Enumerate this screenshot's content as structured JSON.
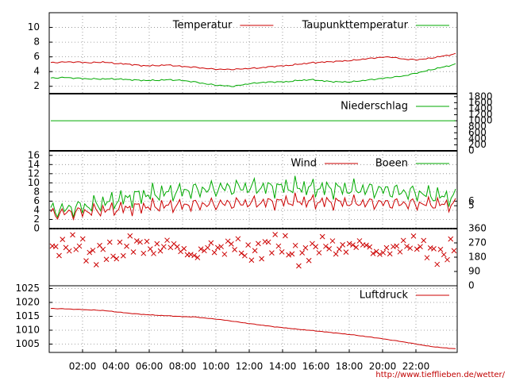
{
  "source_url": "http://www.tiefflieben.de/wetter/",
  "colors": {
    "red": "#cc0000",
    "green": "#00aa00",
    "grid": "#888888"
  },
  "chart_data": [
    {
      "type": "line",
      "grid": true,
      "legend_position": "top-right",
      "ylim": [
        1,
        12
      ],
      "yticks": [
        "2",
        "4",
        "6",
        "8",
        "10"
      ],
      "series": [
        {
          "name": "Temperatur",
          "color": "red",
          "values": [
            5.2,
            5.3,
            5.3,
            5.2,
            5.3,
            5.1,
            5.0,
            4.8,
            4.8,
            4.9,
            4.7,
            4.6,
            4.4,
            4.3,
            4.3,
            4.4,
            4.5,
            4.7,
            4.8,
            5.0,
            5.2,
            5.3,
            5.4,
            5.5,
            5.7,
            5.9,
            6.0,
            5.7,
            5.6,
            5.8,
            6.1,
            6.4
          ]
        },
        {
          "name": "Taupunkttemperatur",
          "color": "green",
          "values": [
            3.1,
            3.2,
            3.1,
            3.0,
            3.0,
            3.0,
            2.9,
            2.8,
            2.8,
            2.9,
            2.8,
            2.6,
            2.3,
            2.1,
            2.0,
            2.3,
            2.5,
            2.6,
            2.6,
            2.8,
            2.9,
            2.7,
            2.6,
            2.6,
            2.8,
            3.0,
            3.2,
            3.4,
            3.8,
            4.2,
            4.6,
            5.0
          ]
        }
      ]
    },
    {
      "type": "line",
      "grid": false,
      "legend_position": "top-right",
      "ylim": [
        0,
        1900
      ],
      "yticks": [
        "0",
        "200",
        "400",
        "600",
        "800",
        "1000",
        "1200",
        "1400",
        "1600",
        "1800"
      ],
      "series": [
        {
          "name": "Niederschlag",
          "color": "green",
          "values": [
            1000,
            1000
          ]
        }
      ]
    },
    {
      "type": "line",
      "grid": true,
      "legend_position": "top-right",
      "ylim": [
        0,
        17
      ],
      "yticks_left": [
        "0",
        "2",
        "4",
        "6",
        "8",
        "10",
        "12",
        "14",
        "16"
      ],
      "yticks_right": [
        "5",
        "6"
      ],
      "series": [
        {
          "name": "Wind",
          "color": "red",
          "values": [
            3.2,
            3.4,
            3.6,
            3.8,
            4.0,
            4.3,
            4.5,
            4.8,
            4.9,
            5.0,
            5.1,
            5.2,
            5.3,
            5.4,
            5.5,
            5.6,
            5.7,
            5.8,
            5.9,
            6.0,
            5.9,
            5.8,
            5.7,
            5.7,
            5.6,
            5.6,
            5.5,
            5.5,
            5.4,
            5.4,
            5.3,
            5.2
          ]
        },
        {
          "name": "Boeen",
          "color": "green",
          "values": [
            4.0,
            4.2,
            4.6,
            5.0,
            5.6,
            6.2,
            6.8,
            7.4,
            7.6,
            7.9,
            8.2,
            8.4,
            8.6,
            8.8,
            8.9,
            9.0,
            9.0,
            9.0,
            9.1,
            9.0,
            8.9,
            8.8,
            8.7,
            8.6,
            8.6,
            8.5,
            8.3,
            8.0,
            7.8,
            7.4,
            7.0,
            6.8
          ]
        }
      ]
    },
    {
      "type": "scatter",
      "ylim": [
        0,
        360
      ],
      "yticks_right": [
        "0",
        "90",
        "180",
        "270",
        "360"
      ],
      "series": [
        {
          "color": "red",
          "values": [
            225,
            250,
            270,
            180,
            225,
            200,
            270,
            250,
            225,
            270,
            225,
            180,
            250,
            225,
            270,
            200,
            225,
            270,
            250,
            180,
            225,
            270,
            225,
            250,
            270,
            200,
            225,
            250,
            270,
            225,
            180,
            250
          ]
        }
      ]
    },
    {
      "type": "line",
      "grid": true,
      "legend_position": "top-right",
      "ylim": [
        1002,
        1026
      ],
      "yticks": [
        "1005",
        "1010",
        "1015",
        "1020",
        "1025"
      ],
      "x_ticks": [
        "02:00",
        "04:00",
        "06:00",
        "08:00",
        "10:00",
        "12:00",
        "14:00",
        "16:00",
        "18:00",
        "20:00",
        "22:00"
      ],
      "series": [
        {
          "name": "Luftdruck",
          "color": "red",
          "values": [
            1017.8,
            1017.7,
            1017.5,
            1017.3,
            1017.1,
            1016.6,
            1016.1,
            1015.7,
            1015.4,
            1015.2,
            1014.9,
            1014.8,
            1014.3,
            1013.8,
            1013.2,
            1012.5,
            1011.9,
            1011.3,
            1010.8,
            1010.3,
            1009.9,
            1009.4,
            1008.9,
            1008.4,
            1007.8,
            1007.2,
            1006.5,
            1005.8,
            1005.0,
            1004.2,
            1003.7,
            1003.3
          ]
        }
      ]
    }
  ]
}
